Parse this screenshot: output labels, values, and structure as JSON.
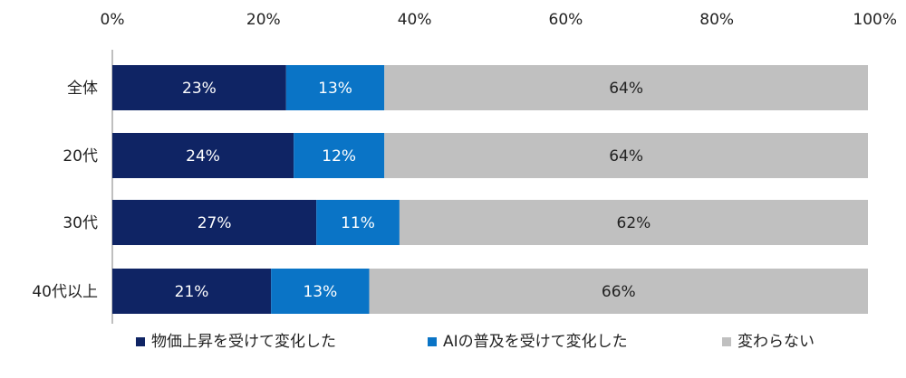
{
  "chart_data": {
    "type": "bar",
    "orientation": "horizontal",
    "stacked": true,
    "percent": true,
    "xlim": [
      0,
      100
    ],
    "x_ticks": [
      "0%",
      "20%",
      "40%",
      "60%",
      "80%",
      "100%"
    ],
    "x_tick_values": [
      0,
      20,
      40,
      60,
      80,
      100
    ],
    "categories": [
      "全体",
      "20代",
      "30代",
      "40代以上"
    ],
    "series": [
      {
        "name": "物価上昇を受けて変化した",
        "color": "#0f2464",
        "label_color": "#ffffff",
        "values": [
          23,
          24,
          27,
          21
        ],
        "labels": [
          "23%",
          "24%",
          "27%",
          "21%"
        ]
      },
      {
        "name": "AIの普及を受けて変化した",
        "color": "#0a74c6",
        "label_color": "#ffffff",
        "values": [
          13,
          12,
          11,
          13
        ],
        "labels": [
          "13%",
          "12%",
          "11%",
          "13%"
        ]
      },
      {
        "name": "変わらない",
        "color": "#c0c0c0",
        "label_color": "#222222",
        "values": [
          64,
          64,
          62,
          66
        ],
        "labels": [
          "64%",
          "64%",
          "62%",
          "66%"
        ]
      }
    ],
    "legend_position": "bottom"
  }
}
